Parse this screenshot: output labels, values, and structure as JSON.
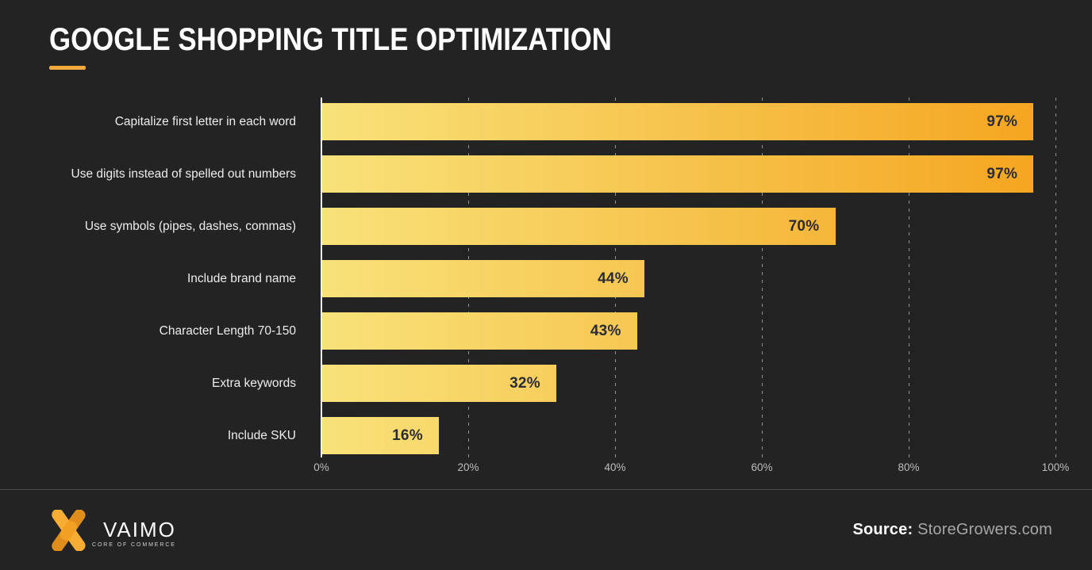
{
  "title": "GOOGLE SHOPPING TITLE OPTIMIZATION",
  "colors": {
    "background": "#232323",
    "accent": "#F2A93B",
    "bar_gradient_start": "#F8E27A",
    "bar_gradient_end": "#F5A41E",
    "bar_value_text": "#2B2B33",
    "category_label_text": "#EDEDED",
    "tick_label_text": "#BDBDBD"
  },
  "chart_data": {
    "type": "bar",
    "orientation": "horizontal",
    "title": "GOOGLE SHOPPING TITLE OPTIMIZATION",
    "categories": [
      "Capitalize first letter in each word",
      "Use digits instead of spelled out numbers",
      "Use symbols (pipes, dashes, commas)",
      "Include brand name",
      "Character Length 70-150",
      "Extra keywords",
      "Include SKU"
    ],
    "values": [
      97,
      97,
      70,
      44,
      43,
      32,
      16
    ],
    "value_labels": [
      "97%",
      "97%",
      "70%",
      "44%",
      "43%",
      "32%",
      "16%"
    ],
    "x_ticks": [
      "0%",
      "20%",
      "40%",
      "60%",
      "80%",
      "100%"
    ],
    "xlim": [
      0,
      100
    ],
    "xlabel": "",
    "ylabel": "",
    "grid": "dashed-vertical",
    "legend": "none",
    "value_label_position": "inside-end"
  },
  "footer": {
    "brand": {
      "name": "VAIMO",
      "tagline": "CORE OF COMMERCE"
    },
    "source_label": "Source:",
    "source_value": " StoreGrowers.com"
  }
}
